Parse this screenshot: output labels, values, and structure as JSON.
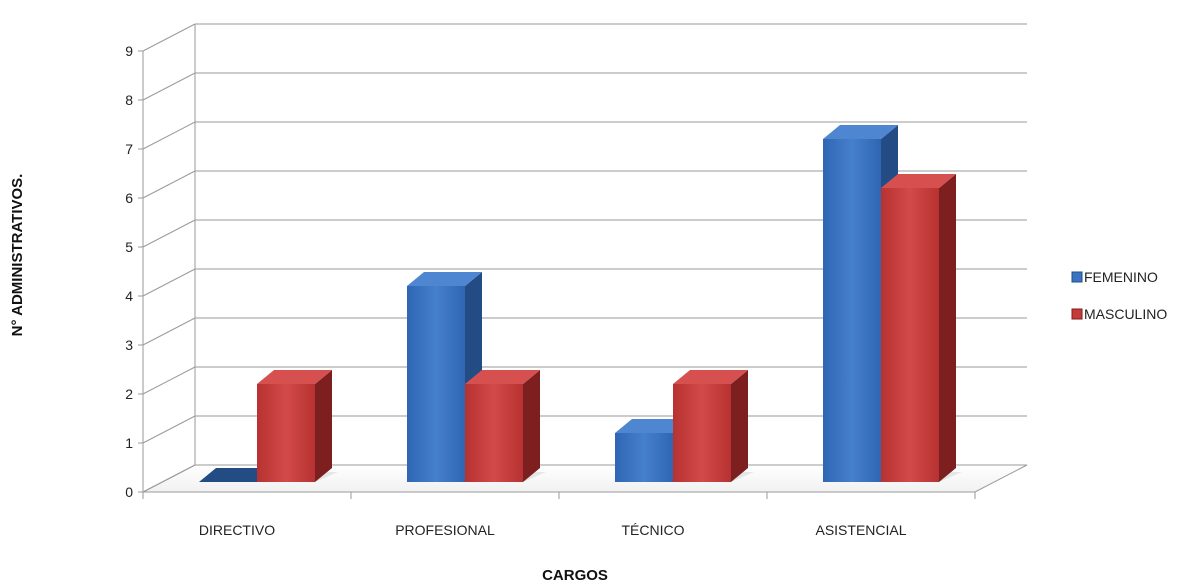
{
  "chart_data": {
    "type": "bar",
    "categories": [
      "DIRECTIVO",
      "PROFESIONAL",
      "TÉCNICO",
      "ASISTENCIAL"
    ],
    "series": [
      {
        "name": "FEMENINO",
        "values": [
          0,
          4,
          1,
          7
        ]
      },
      {
        "name": "MASCULINO",
        "values": [
          2,
          2,
          2,
          6
        ]
      }
    ],
    "xlabel": "CARGOS",
    "ylabel": "N° ADMINISTRATIVOS.",
    "ylim": [
      0,
      9
    ],
    "yticks": [
      "0",
      "1",
      "2",
      "3",
      "4",
      "5",
      "6",
      "7",
      "8",
      "9"
    ],
    "legend_position": "right",
    "grid": true,
    "three_d": true,
    "colors": {
      "FEMENINO": {
        "front": "#3a73c2",
        "side": "#234c85",
        "top": "#4f86d1"
      },
      "MASCULINO": {
        "front": "#c63a3a",
        "side": "#7e1f1f",
        "top": "#d65050"
      },
      "grid": "#9a9a9a"
    }
  }
}
